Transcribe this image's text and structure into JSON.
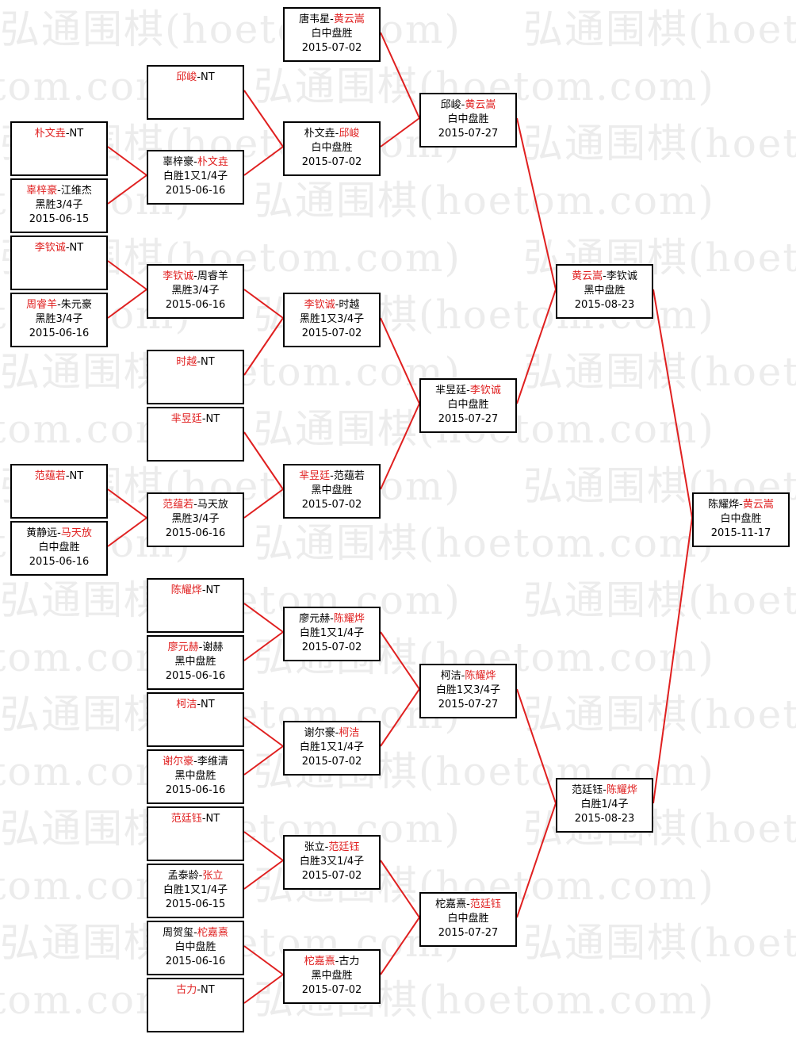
{
  "watermark": "弘通围棋(hoetom.com)",
  "colors": {
    "winner": "#e02020",
    "line": "#e02020",
    "border": "#000000",
    "watermark": "#ececec"
  },
  "matches": [
    {
      "p1": "唐韦星",
      "p2": "黄云嵩",
      "winner": 2,
      "result": "白中盘胜",
      "date": "2015-07-02"
    },
    {
      "p1": "邱峻",
      "p2": "NT",
      "winner": 1,
      "result": "",
      "date": ""
    },
    {
      "p1": "朴文垚",
      "p2": "邱峻",
      "winner": 2,
      "result": "白中盘胜",
      "date": "2015-07-02"
    },
    {
      "p1": "邱峻",
      "p2": "黄云嵩",
      "winner": 2,
      "result": "白中盘胜",
      "date": "2015-07-27"
    },
    {
      "p1": "朴文垚",
      "p2": "NT",
      "winner": 1,
      "result": "",
      "date": ""
    },
    {
      "p1": "辜梓豪",
      "p2": "江维杰",
      "winner": 1,
      "result": "黑胜3/4子",
      "date": "2015-06-15"
    },
    {
      "p1": "辜梓豪",
      "p2": "朴文垚",
      "winner": 2,
      "result": "白胜1又1/4子",
      "date": "2015-06-16"
    },
    {
      "p1": "李钦诚",
      "p2": "NT",
      "winner": 1,
      "result": "",
      "date": ""
    },
    {
      "p1": "周睿羊",
      "p2": "朱元豪",
      "winner": 1,
      "result": "黑胜3/4子",
      "date": "2015-06-16"
    },
    {
      "p1": "李钦诚",
      "p2": "周睿羊",
      "winner": 1,
      "result": "黑胜3/4子",
      "date": "2015-06-16"
    },
    {
      "p1": "时越",
      "p2": "NT",
      "winner": 1,
      "result": "",
      "date": ""
    },
    {
      "p1": "李钦诚",
      "p2": "时越",
      "winner": 1,
      "result": "黑胜1又3/4子",
      "date": "2015-07-02"
    },
    {
      "p1": "芈昱廷",
      "p2": "NT",
      "winner": 1,
      "result": "",
      "date": ""
    },
    {
      "p1": "范蕴若",
      "p2": "NT",
      "winner": 1,
      "result": "",
      "date": ""
    },
    {
      "p1": "黄静远",
      "p2": "马天放",
      "winner": 2,
      "result": "白中盘胜",
      "date": "2015-06-16"
    },
    {
      "p1": "范蕴若",
      "p2": "马天放",
      "winner": 1,
      "result": "黑胜3/4子",
      "date": "2015-06-16"
    },
    {
      "p1": "芈昱廷",
      "p2": "范蕴若",
      "winner": 1,
      "result": "黑中盘胜",
      "date": "2015-07-02"
    },
    {
      "p1": "芈昱廷",
      "p2": "李钦诚",
      "winner": 2,
      "result": "白中盘胜",
      "date": "2015-07-27"
    },
    {
      "p1": "黄云嵩",
      "p2": "李钦诚",
      "winner": 1,
      "result": "黑中盘胜",
      "date": "2015-08-23"
    },
    {
      "p1": "陈耀烨",
      "p2": "NT",
      "winner": 1,
      "result": "",
      "date": ""
    },
    {
      "p1": "廖元赫",
      "p2": "谢赫",
      "winner": 1,
      "result": "黑中盘胜",
      "date": "2015-06-16"
    },
    {
      "p1": "廖元赫",
      "p2": "陈耀烨",
      "winner": 2,
      "result": "白胜1又1/4子",
      "date": "2015-07-02"
    },
    {
      "p1": "柯洁",
      "p2": "NT",
      "winner": 1,
      "result": "",
      "date": ""
    },
    {
      "p1": "谢尔豪",
      "p2": "李维清",
      "winner": 1,
      "result": "黑中盘胜",
      "date": "2015-06-16"
    },
    {
      "p1": "谢尔豪",
      "p2": "柯洁",
      "winner": 2,
      "result": "白胜1又1/4子",
      "date": "2015-07-02"
    },
    {
      "p1": "柯洁",
      "p2": "陈耀烨",
      "winner": 2,
      "result": "白胜1又3/4子",
      "date": "2015-07-27"
    },
    {
      "p1": "范廷钰",
      "p2": "NT",
      "winner": 1,
      "result": "",
      "date": ""
    },
    {
      "p1": "孟泰龄",
      "p2": "张立",
      "winner": 2,
      "result": "白胜1又1/4子",
      "date": "2015-06-15"
    },
    {
      "p1": "张立",
      "p2": "范廷钰",
      "winner": 2,
      "result": "白胜3又1/4子",
      "date": "2015-07-02"
    },
    {
      "p1": "周贺玺",
      "p2": "柁嘉熹",
      "winner": 2,
      "result": "白中盘胜",
      "date": "2015-06-16"
    },
    {
      "p1": "古力",
      "p2": "NT",
      "winner": 1,
      "result": "",
      "date": ""
    },
    {
      "p1": "柁嘉熹",
      "p2": "古力",
      "winner": 1,
      "result": "黑中盘胜",
      "date": "2015-07-02"
    },
    {
      "p1": "柁嘉熹",
      "p2": "范廷钰",
      "winner": 2,
      "result": "白中盘胜",
      "date": "2015-07-27"
    },
    {
      "p1": "范廷钰",
      "p2": "陈耀烨",
      "winner": 2,
      "result": "白胜1/4子",
      "date": "2015-08-23"
    },
    {
      "p1": "陈耀烨",
      "p2": "黄云嵩",
      "winner": 2,
      "result": "白中盘胜",
      "date": "2015-11-17"
    }
  ]
}
